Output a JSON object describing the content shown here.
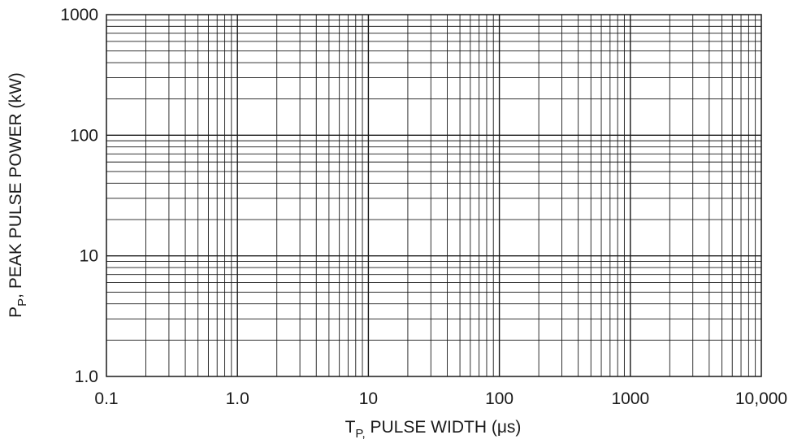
{
  "chart_data": {
    "type": "line",
    "title": "",
    "xlabel": {
      "main": "T",
      "sub": "P,",
      "rest": " PULSE WIDTH (μs)"
    },
    "ylabel": {
      "main": "P",
      "sub": "P",
      "rest": ", PEAK PULSE POWER (kW)"
    },
    "x_scale": "log",
    "y_scale": "log",
    "xlim": [
      0.1,
      10000
    ],
    "ylim": [
      1.0,
      1000
    ],
    "x_ticks": [
      {
        "value": 0.1,
        "label": "0.1"
      },
      {
        "value": 1,
        "label": "1.0"
      },
      {
        "value": 10,
        "label": "10"
      },
      {
        "value": 100,
        "label": "100"
      },
      {
        "value": 1000,
        "label": "1000"
      },
      {
        "value": 10000,
        "label": "10,000"
      }
    ],
    "y_ticks": [
      {
        "value": 1,
        "label": "1.0"
      },
      {
        "value": 10,
        "label": "10"
      },
      {
        "value": 100,
        "label": "100"
      },
      {
        "value": 1000,
        "label": "1000"
      }
    ],
    "grid": true,
    "series": []
  }
}
